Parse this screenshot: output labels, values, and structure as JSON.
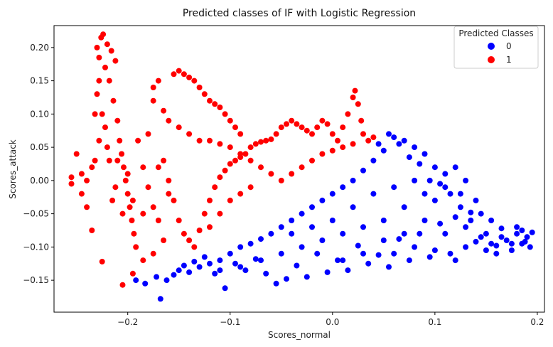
{
  "chart_data": {
    "type": "scatter",
    "title": "Predicted classes of IF with Logistic Regression",
    "xlabel": "Scores_normal",
    "ylabel": "Scores_attack",
    "xlim": [
      -0.272,
      0.207
    ],
    "ylim": [
      -0.198,
      0.233
    ],
    "xticks": [
      -0.2,
      -0.1,
      0.0,
      0.1,
      0.2
    ],
    "xtick_labels": [
      "−0.2",
      "−0.1",
      "0.0",
      "0.1",
      "0.2"
    ],
    "yticks": [
      -0.15,
      -0.1,
      -0.05,
      0.0,
      0.05,
      0.1,
      0.15,
      0.2
    ],
    "ytick_labels": [
      "−0.15",
      "−0.10",
      "−0.05",
      "0.00",
      "0.05",
      "0.10",
      "0.15",
      "0.20"
    ],
    "grid": false,
    "legend": {
      "title": "Predicted Classes",
      "placement": "top-right"
    },
    "series": [
      {
        "name": "0",
        "color": "#0000ff",
        "points": [
          [
            -0.192,
            -0.15
          ],
          [
            -0.183,
            -0.155
          ],
          [
            -0.172,
            -0.145
          ],
          [
            -0.168,
            -0.178
          ],
          [
            -0.162,
            -0.15
          ],
          [
            -0.155,
            -0.142
          ],
          [
            -0.15,
            -0.135
          ],
          [
            -0.145,
            -0.128
          ],
          [
            -0.14,
            -0.138
          ],
          [
            -0.135,
            -0.122
          ],
          [
            -0.13,
            -0.13
          ],
          [
            -0.125,
            -0.115
          ],
          [
            -0.12,
            -0.125
          ],
          [
            -0.115,
            -0.14
          ],
          [
            -0.11,
            -0.12
          ],
          [
            -0.105,
            -0.162
          ],
          [
            -0.1,
            -0.11
          ],
          [
            -0.095,
            -0.125
          ],
          [
            -0.09,
            -0.1
          ],
          [
            -0.085,
            -0.135
          ],
          [
            -0.08,
            -0.095
          ],
          [
            -0.075,
            -0.118
          ],
          [
            -0.07,
            -0.088
          ],
          [
            -0.065,
            -0.14
          ],
          [
            -0.06,
            -0.08
          ],
          [
            -0.055,
            -0.155
          ],
          [
            -0.05,
            -0.07
          ],
          [
            -0.045,
            -0.148
          ],
          [
            -0.04,
            -0.06
          ],
          [
            -0.035,
            -0.128
          ],
          [
            -0.03,
            -0.05
          ],
          [
            -0.025,
            -0.145
          ],
          [
            -0.02,
            -0.04
          ],
          [
            -0.015,
            -0.11
          ],
          [
            -0.01,
            -0.03
          ],
          [
            -0.005,
            -0.138
          ],
          [
            0.0,
            -0.02
          ],
          [
            0.005,
            -0.12
          ],
          [
            0.01,
            -0.01
          ],
          [
            0.015,
            -0.135
          ],
          [
            0.02,
            0.0
          ],
          [
            0.025,
            -0.098
          ],
          [
            0.03,
            0.015
          ],
          [
            0.035,
            -0.125
          ],
          [
            0.04,
            0.03
          ],
          [
            0.045,
            -0.112
          ],
          [
            0.05,
            0.045
          ],
          [
            0.055,
            -0.13
          ],
          [
            0.06,
            0.065
          ],
          [
            0.065,
            -0.088
          ],
          [
            0.07,
            0.06
          ],
          [
            0.075,
            -0.12
          ],
          [
            0.08,
            0.05
          ],
          [
            0.085,
            -0.08
          ],
          [
            0.09,
            0.04
          ],
          [
            0.095,
            -0.115
          ],
          [
            0.1,
            0.02
          ],
          [
            0.105,
            -0.065
          ],
          [
            0.11,
            -0.01
          ],
          [
            0.115,
            -0.11
          ],
          [
            0.12,
            -0.055
          ],
          [
            0.125,
            -0.02
          ],
          [
            0.13,
            -0.1
          ],
          [
            0.135,
            -0.048
          ],
          [
            0.14,
            -0.092
          ],
          [
            0.145,
            -0.05
          ],
          [
            0.15,
            -0.105
          ],
          [
            0.155,
            -0.06
          ],
          [
            0.16,
            -0.098
          ],
          [
            0.165,
            -0.072
          ],
          [
            0.17,
            -0.09
          ],
          [
            0.175,
            -0.105
          ],
          [
            0.18,
            -0.08
          ],
          [
            0.185,
            -0.095
          ],
          [
            0.19,
            -0.085
          ],
          [
            0.195,
            -0.078
          ],
          [
            0.193,
            -0.1
          ],
          [
            0.18,
            -0.07
          ],
          [
            0.14,
            -0.03
          ],
          [
            0.13,
            0.0
          ],
          [
            0.12,
            0.02
          ],
          [
            0.11,
            0.01
          ],
          [
            0.09,
            -0.02
          ],
          [
            0.07,
            -0.04
          ],
          [
            0.05,
            -0.06
          ],
          [
            0.03,
            -0.07
          ],
          [
            0.01,
            -0.08
          ],
          [
            -0.01,
            -0.09
          ],
          [
            -0.03,
            -0.1
          ],
          [
            -0.05,
            -0.11
          ],
          [
            -0.07,
            -0.12
          ],
          [
            -0.09,
            -0.13
          ],
          [
            -0.11,
            -0.135
          ],
          [
            0.06,
            -0.01
          ],
          [
            0.04,
            -0.02
          ],
          [
            0.02,
            -0.04
          ],
          [
            0.0,
            -0.06
          ],
          [
            -0.02,
            -0.07
          ],
          [
            -0.04,
            -0.08
          ],
          [
            0.08,
            0.0
          ],
          [
            0.1,
            -0.03
          ],
          [
            0.09,
            -0.06
          ],
          [
            0.07,
            -0.08
          ],
          [
            0.05,
            -0.09
          ],
          [
            0.03,
            -0.11
          ],
          [
            0.01,
            -0.12
          ],
          [
            0.11,
            -0.08
          ],
          [
            0.13,
            -0.07
          ],
          [
            0.15,
            -0.08
          ],
          [
            0.16,
            -0.11
          ],
          [
            0.12,
            -0.12
          ],
          [
            0.1,
            -0.105
          ],
          [
            0.08,
            -0.1
          ],
          [
            0.06,
            -0.11
          ],
          [
            0.045,
            0.055
          ],
          [
            0.055,
            0.07
          ],
          [
            0.065,
            0.055
          ],
          [
            0.075,
            0.035
          ],
          [
            0.085,
            0.025
          ],
          [
            0.095,
            0.0
          ],
          [
            0.105,
            -0.005
          ],
          [
            0.115,
            -0.02
          ],
          [
            0.125,
            -0.04
          ],
          [
            0.135,
            -0.06
          ],
          [
            0.145,
            -0.085
          ],
          [
            0.155,
            -0.095
          ],
          [
            0.165,
            -0.085
          ],
          [
            0.175,
            -0.095
          ],
          [
            0.185,
            -0.075
          ],
          [
            0.188,
            -0.092
          ]
        ]
      },
      {
        "name": "1",
        "color": "#ff0000",
        "points": [
          [
            -0.255,
            -0.005
          ],
          [
            -0.255,
            0.005
          ],
          [
            -0.25,
            0.04
          ],
          [
            -0.245,
            0.01
          ],
          [
            -0.24,
            -0.04
          ],
          [
            -0.235,
            -0.075
          ],
          [
            -0.232,
            0.03
          ],
          [
            -0.23,
            0.2
          ],
          [
            -0.228,
            0.185
          ],
          [
            -0.226,
            0.215
          ],
          [
            -0.224,
            0.22
          ],
          [
            -0.222,
            0.17
          ],
          [
            -0.22,
            0.205
          ],
          [
            -0.218,
            0.15
          ],
          [
            -0.216,
            0.195
          ],
          [
            -0.214,
            0.12
          ],
          [
            -0.212,
            0.18
          ],
          [
            -0.21,
            0.09
          ],
          [
            -0.208,
            0.06
          ],
          [
            -0.206,
            0.04
          ],
          [
            -0.204,
            0.02
          ],
          [
            -0.202,
            0.0
          ],
          [
            -0.2,
            -0.02
          ],
          [
            -0.198,
            -0.04
          ],
          [
            -0.196,
            -0.06
          ],
          [
            -0.194,
            -0.08
          ],
          [
            -0.192,
            -0.1
          ],
          [
            -0.225,
            -0.122
          ],
          [
            -0.205,
            -0.157
          ],
          [
            -0.215,
            -0.03
          ],
          [
            -0.22,
            0.05
          ],
          [
            -0.225,
            0.1
          ],
          [
            -0.228,
            0.15
          ],
          [
            -0.23,
            0.13
          ],
          [
            -0.222,
            0.08
          ],
          [
            -0.218,
            0.03
          ],
          [
            -0.212,
            -0.01
          ],
          [
            -0.205,
            -0.05
          ],
          [
            -0.19,
            0.06
          ],
          [
            -0.185,
            0.02
          ],
          [
            -0.18,
            -0.01
          ],
          [
            -0.175,
            -0.04
          ],
          [
            -0.17,
            -0.06
          ],
          [
            -0.165,
            0.03
          ],
          [
            -0.16,
            0.0
          ],
          [
            -0.155,
            -0.03
          ],
          [
            -0.15,
            -0.06
          ],
          [
            -0.145,
            -0.08
          ],
          [
            -0.14,
            -0.09
          ],
          [
            -0.135,
            -0.1
          ],
          [
            -0.13,
            -0.075
          ],
          [
            -0.125,
            -0.05
          ],
          [
            -0.12,
            -0.03
          ],
          [
            -0.115,
            -0.01
          ],
          [
            -0.11,
            0.005
          ],
          [
            -0.105,
            0.015
          ],
          [
            -0.1,
            0.025
          ],
          [
            -0.095,
            0.03
          ],
          [
            -0.09,
            0.035
          ],
          [
            -0.085,
            0.04
          ],
          [
            -0.08,
            0.05
          ],
          [
            -0.075,
            0.055
          ],
          [
            -0.07,
            0.058
          ],
          [
            -0.065,
            0.06
          ],
          [
            -0.06,
            0.062
          ],
          [
            -0.055,
            0.07
          ],
          [
            -0.05,
            0.08
          ],
          [
            -0.045,
            0.085
          ],
          [
            -0.04,
            0.09
          ],
          [
            -0.035,
            0.085
          ],
          [
            -0.03,
            0.08
          ],
          [
            -0.025,
            0.075
          ],
          [
            -0.02,
            0.07
          ],
          [
            -0.015,
            0.08
          ],
          [
            -0.01,
            0.09
          ],
          [
            -0.005,
            0.085
          ],
          [
            0.0,
            0.07
          ],
          [
            0.005,
            0.06
          ],
          [
            0.01,
            0.08
          ],
          [
            0.015,
            0.1
          ],
          [
            0.02,
            0.125
          ],
          [
            0.022,
            0.135
          ],
          [
            0.025,
            0.115
          ],
          [
            0.028,
            0.09
          ],
          [
            0.03,
            0.07
          ],
          [
            0.035,
            0.06
          ],
          [
            0.04,
            0.065
          ],
          [
            -0.155,
            0.16
          ],
          [
            -0.15,
            0.165
          ],
          [
            -0.145,
            0.16
          ],
          [
            -0.14,
            0.155
          ],
          [
            -0.135,
            0.15
          ],
          [
            -0.13,
            0.14
          ],
          [
            -0.125,
            0.13
          ],
          [
            -0.12,
            0.12
          ],
          [
            -0.115,
            0.115
          ],
          [
            -0.11,
            0.11
          ],
          [
            -0.105,
            0.1
          ],
          [
            -0.1,
            0.09
          ],
          [
            -0.095,
            0.08
          ],
          [
            -0.09,
            0.07
          ],
          [
            -0.17,
            0.15
          ],
          [
            -0.175,
            0.14
          ],
          [
            -0.175,
            0.12
          ],
          [
            -0.165,
            0.105
          ],
          [
            -0.16,
            0.09
          ],
          [
            -0.15,
            0.08
          ],
          [
            -0.14,
            0.07
          ],
          [
            -0.13,
            0.06
          ],
          [
            -0.12,
            0.06
          ],
          [
            -0.11,
            0.055
          ],
          [
            -0.1,
            0.05
          ],
          [
            -0.09,
            0.04
          ],
          [
            -0.08,
            0.03
          ],
          [
            -0.07,
            0.02
          ],
          [
            -0.06,
            0.01
          ],
          [
            -0.05,
            0.0
          ],
          [
            -0.04,
            0.01
          ],
          [
            -0.03,
            0.02
          ],
          [
            -0.02,
            0.03
          ],
          [
            -0.01,
            0.04
          ],
          [
            0.0,
            0.045
          ],
          [
            0.01,
            0.05
          ],
          [
            0.02,
            0.055
          ],
          [
            -0.1,
            -0.03
          ],
          [
            -0.09,
            -0.02
          ],
          [
            -0.08,
            -0.01
          ],
          [
            -0.11,
            -0.05
          ],
          [
            -0.12,
            -0.07
          ],
          [
            -0.185,
            -0.05
          ],
          [
            -0.195,
            -0.03
          ],
          [
            -0.2,
            0.01
          ],
          [
            -0.21,
            0.03
          ],
          [
            -0.18,
            0.07
          ],
          [
            -0.17,
            0.02
          ],
          [
            -0.16,
            -0.02
          ],
          [
            -0.165,
            -0.09
          ],
          [
            -0.175,
            -0.11
          ],
          [
            -0.185,
            -0.12
          ],
          [
            -0.195,
            -0.14
          ],
          [
            -0.24,
            0.0
          ],
          [
            -0.245,
            -0.02
          ],
          [
            -0.235,
            0.02
          ],
          [
            -0.228,
            0.06
          ],
          [
            -0.232,
            0.1
          ]
        ]
      }
    ]
  }
}
